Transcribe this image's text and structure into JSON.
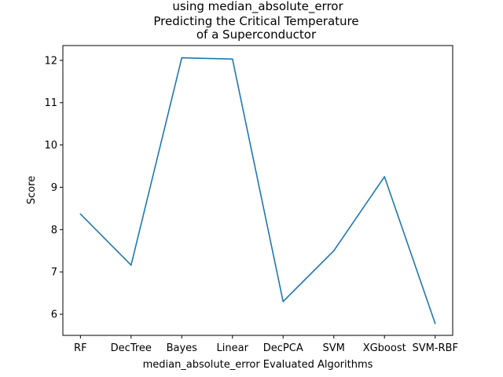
{
  "chart_data": {
    "type": "line",
    "title_lines": [
      "using median_absolute_error",
      "Predicting the Critical Temperature",
      "of a Superconductor"
    ],
    "xlabel": "median_absolute_error Evaluated Algorithms",
    "ylabel": "Score",
    "categories": [
      "RF",
      "DecTree",
      "Bayes",
      "Linear",
      "DecPCA",
      "SVM",
      "XGboost",
      "SVM-RBF"
    ],
    "series": [
      {
        "values": [
          8.37,
          7.16,
          12.06,
          12.03,
          6.3,
          7.5,
          9.25,
          5.78
        ]
      }
    ],
    "ylim": [
      5.5,
      12.35
    ],
    "yticks": [
      6,
      7,
      8,
      9,
      10,
      11,
      12
    ],
    "grid": false,
    "line_color": "#1f77b4"
  }
}
